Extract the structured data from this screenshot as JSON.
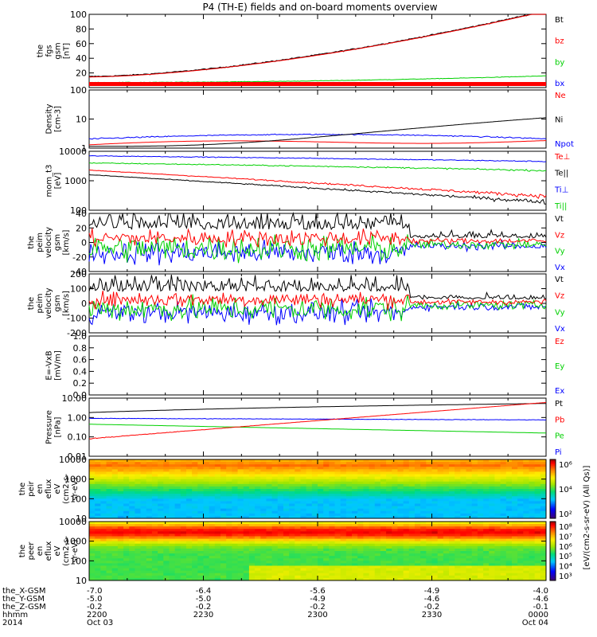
{
  "title": "P4 (TH-E) fields and on-board moments overview",
  "colors": {
    "black": "#000000",
    "red": "#ff0000",
    "green": "#00d000",
    "blue": "#0000ff"
  },
  "chart_data": [
    {
      "type": "line",
      "id": "fgs",
      "ylabel": [
        "the",
        "fgs",
        "gsm",
        "[nT]"
      ],
      "ylim": [
        0,
        100
      ],
      "yscale": "linear",
      "yticks": [
        "20",
        "40",
        "60",
        "80",
        "100"
      ],
      "series": [
        {
          "name": "Bt",
          "color": "#000000"
        },
        {
          "name": "bz",
          "color": "#ff0000"
        },
        {
          "name": "by",
          "color": "#00d000"
        },
        {
          "name": "bx",
          "color": "#0000ff"
        }
      ]
    },
    {
      "type": "line",
      "id": "density",
      "ylabel": [
        "Density",
        "[cm-3]"
      ],
      "ylim": [
        1,
        100
      ],
      "yscale": "log",
      "yticks": [
        "1",
        "10",
        "100"
      ],
      "series": [
        {
          "name": "Ne",
          "color": "#ff0000"
        },
        {
          "name": "Ni",
          "color": "#000000"
        },
        {
          "name": "Npot",
          "color": "#0000ff"
        }
      ]
    },
    {
      "type": "line",
      "id": "temperature",
      "ylabel": [
        "mom_t3",
        "[eV]"
      ],
      "ylim": [
        100,
        10000
      ],
      "yscale": "log",
      "yticks": [
        "100",
        "1000",
        "10000"
      ],
      "series": [
        {
          "name": "Te⊥",
          "color": "#ff0000"
        },
        {
          "name": "Te||",
          "color": "#000000"
        },
        {
          "name": "Ti⊥",
          "color": "#0000ff"
        },
        {
          "name": "Ti||",
          "color": "#00d000"
        }
      ]
    },
    {
      "type": "line",
      "id": "eeim",
      "ylabel": [
        "the",
        "peim",
        "velocity",
        "gsm",
        "[km/s]"
      ],
      "ylim": [
        -40,
        40
      ],
      "yscale": "linear",
      "yticks": [
        "-40",
        "-20",
        "0",
        "20",
        "40"
      ],
      "series": [
        {
          "name": "Vt",
          "color": "#000000"
        },
        {
          "name": "Vz",
          "color": "#ff0000"
        },
        {
          "name": "Vy",
          "color": "#00d000"
        },
        {
          "name": "Vx",
          "color": "#0000ff"
        }
      ]
    },
    {
      "type": "line",
      "id": "iiim",
      "ylabel": [
        "the",
        "peim",
        "velocity",
        "gsm",
        "[km/s]"
      ],
      "ylim": [
        -200,
        200
      ],
      "yscale": "linear",
      "yticks": [
        "-200",
        "-100",
        "0",
        "100",
        "200"
      ],
      "series": [
        {
          "name": "Vt",
          "color": "#000000"
        },
        {
          "name": "Vz",
          "color": "#ff0000"
        },
        {
          "name": "Vy",
          "color": "#00d000"
        },
        {
          "name": "Vx",
          "color": "#0000ff"
        }
      ]
    },
    {
      "type": "line",
      "id": "efield",
      "ylabel": [
        "E=-VxB",
        "[mV/m]"
      ],
      "ylim": [
        0,
        1
      ],
      "yscale": "linear",
      "yticks": [
        "0.0",
        "0.2",
        "0.4",
        "0.6",
        "0.8",
        "1.0"
      ],
      "series": [
        {
          "name": "Ez",
          "color": "#ff0000"
        },
        {
          "name": "Ey",
          "color": "#00d000"
        },
        {
          "name": "Ex",
          "color": "#0000ff"
        }
      ]
    },
    {
      "type": "line",
      "id": "pressure",
      "ylabel": [
        "Pressure",
        "[nPa]"
      ],
      "ylim": [
        0.01,
        10
      ],
      "yscale": "log",
      "yticks": [
        "0.01",
        "0.10",
        "1.00",
        "10.00"
      ],
      "series": [
        {
          "name": "Pt",
          "color": "#000000"
        },
        {
          "name": "Pb",
          "color": "#ff0000"
        },
        {
          "name": "Pe",
          "color": "#00d000"
        },
        {
          "name": "Pi",
          "color": "#0000ff"
        }
      ]
    },
    {
      "type": "heatmap",
      "id": "peir",
      "ylabel": [
        "the",
        "peir",
        "en",
        "eflux",
        "eV",
        "(cm2-s-",
        "sr-eV)"
      ],
      "ylim": [
        10,
        10000
      ],
      "yscale": "log",
      "yticks": [
        "10",
        "100",
        "1000",
        "10000"
      ],
      "zlim": [
        100,
        1000000
      ],
      "zticks": [
        "10²",
        "10⁴",
        "10⁶"
      ]
    },
    {
      "type": "heatmap",
      "id": "peer",
      "ylabel": [
        "the",
        "peer",
        "en",
        "eflux",
        "eV",
        "(cm2-s-",
        "sr-eV)"
      ],
      "ylim": [
        10,
        10000
      ],
      "yscale": "log",
      "yticks": [
        "10",
        "100",
        "1000",
        "10000"
      ],
      "zlim": [
        1000,
        100000000
      ],
      "zticks": [
        "10³",
        "10⁴",
        "10⁵",
        "10⁶",
        "10⁷",
        "10⁸"
      ]
    }
  ],
  "colorbar_label": "[eV/(cm2-s-sr-eV) (All Qs)]",
  "xaxis": {
    "rows": [
      {
        "label": "the_X-GSM",
        "values": [
          "-7.0",
          "-6.4",
          "-5.6",
          "-4.9",
          "-4.0"
        ]
      },
      {
        "label": "the_Y-GSM",
        "values": [
          "-5.0",
          "-5.0",
          "-4.9",
          "-4.6",
          "-4.6"
        ]
      },
      {
        "label": "the_Z-GSM",
        "values": [
          "-0.2",
          "-0.2",
          "-0.2",
          "-0.2",
          "-0.1"
        ]
      },
      {
        "label": "hhmm",
        "values": [
          "2200",
          "2230",
          "2300",
          "2330",
          "0000"
        ]
      },
      {
        "label": "2014",
        "values": [
          "Oct 03",
          "",
          "",
          "",
          "Oct 04"
        ]
      }
    ],
    "time_range_minutes": [
      0,
      120
    ]
  }
}
